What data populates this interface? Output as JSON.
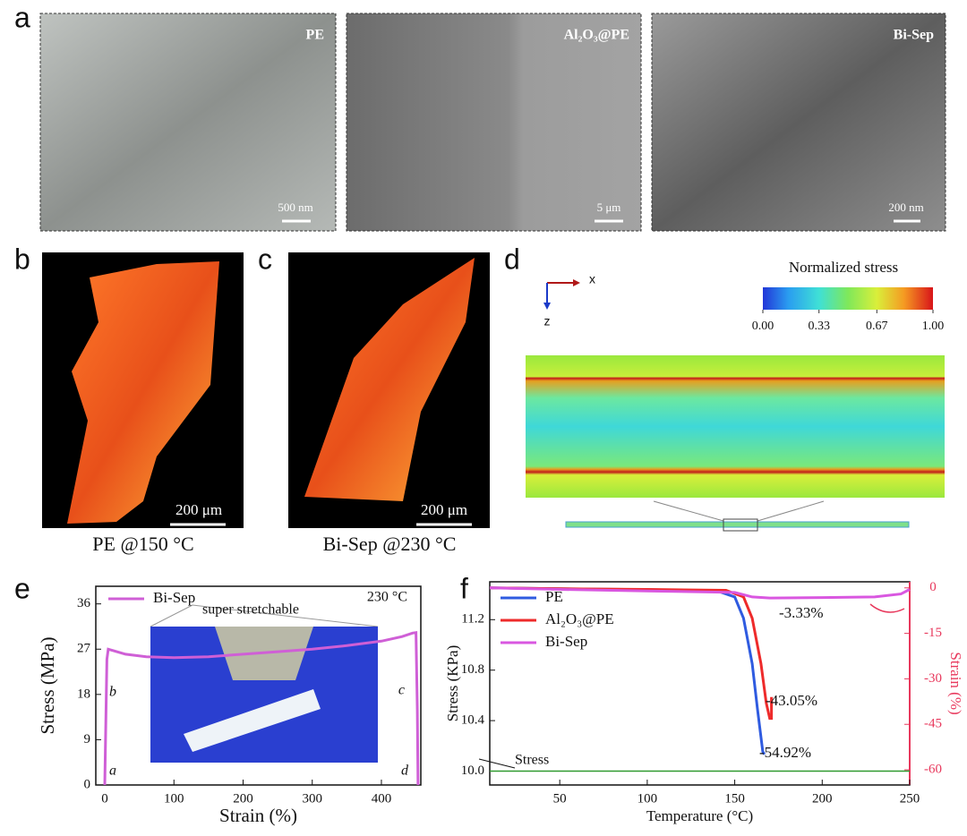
{
  "panels": {
    "a": {
      "label": "a",
      "images": [
        {
          "name": "PE",
          "scale": "500 nm"
        },
        {
          "name": "Al₂O₃@PE",
          "scale": "5 μm"
        },
        {
          "name": "Bi-Sep",
          "scale": "200 nm"
        }
      ]
    },
    "b": {
      "label": "b",
      "scale": "200 μm",
      "caption": "PE @150 °C"
    },
    "c": {
      "label": "c",
      "scale": "200 μm",
      "caption": "Bi-Sep @230 °C"
    },
    "d": {
      "label": "d",
      "axis_x": "x",
      "axis_z": "z",
      "colorbar_title": "Normalized stress",
      "colorbar_ticks": [
        {
          "value": 0,
          "label": "0.00"
        },
        {
          "value": 0.33,
          "label": "0.33"
        },
        {
          "value": 0.67,
          "label": "0.67"
        },
        {
          "value": 1,
          "label": "1.00"
        }
      ],
      "colorbar_range": [
        0,
        1
      ]
    },
    "e": {
      "label": "e"
    },
    "f": {
      "label": "f"
    }
  },
  "chart_data": [
    {
      "type": "line",
      "xlabel": "Strain (%)",
      "ylabel": "Stress (MPa)",
      "xlim": [
        -13,
        457
      ],
      "ylim": [
        0,
        39.5
      ],
      "xticks": [
        0,
        100,
        200,
        300,
        400
      ],
      "yticks": [
        0,
        9,
        18,
        27,
        36
      ],
      "legend": "upper left",
      "series": [
        {
          "name": "Bi-Sep",
          "color": "#cf5fd6",
          "x": [
            0,
            3,
            5,
            10,
            30,
            60,
            100,
            150,
            200,
            250,
            300,
            350,
            400,
            430,
            445,
            450,
            452,
            453
          ],
          "values": [
            0,
            25,
            27,
            26.8,
            26,
            25.5,
            25.3,
            25.5,
            26,
            26.5,
            27,
            27.7,
            28.6,
            29.5,
            30.2,
            30.3,
            15,
            0
          ]
        }
      ],
      "annotations": [
        "230 °C",
        "super stretchable",
        "a",
        "b",
        "c",
        "d"
      ]
    },
    {
      "type": "line",
      "xlabel": "Temperature (°C)",
      "ylabel": "Stress (KPa)",
      "y2label": "Strain (%)",
      "xlim": [
        10,
        250
      ],
      "ylim": [
        9.89,
        11.5
      ],
      "y2lim": [
        -65,
        2
      ],
      "xticks": [
        50,
        100,
        150,
        200,
        250
      ],
      "yticks": [
        {
          "value": 10,
          "label": "10.0"
        },
        {
          "value": 10.4,
          "label": "10.4"
        },
        {
          "value": 10.8,
          "label": "10.8"
        },
        {
          "value": 11.2,
          "label": "11.2"
        }
      ],
      "y2ticks": [
        0,
        -15,
        -30,
        -45,
        -60
      ],
      "y2_color": "#e8385c",
      "legend": "upper left",
      "series": [
        {
          "name": "PE",
          "color": "#2f5be0",
          "axis": "y2",
          "x": [
            10,
            50,
            100,
            140,
            150,
            155,
            160,
            163,
            166,
            167
          ],
          "values": [
            0,
            -0.3,
            -0.6,
            -1,
            -3,
            -10,
            -25,
            -40,
            -54,
            -54.92
          ]
        },
        {
          "name": "Al₂O₃@PE",
          "color": "#ee2b2b",
          "axis": "y2",
          "x": [
            10,
            50,
            100,
            145,
            155,
            160,
            165,
            168,
            170,
            171,
            171
          ],
          "values": [
            0,
            -0.3,
            -0.5,
            -0.8,
            -3,
            -10,
            -25,
            -38,
            -43.05,
            -43.05,
            -36
          ]
        },
        {
          "name": "Bi-Sep",
          "color": "#d957e0",
          "axis": "y2",
          "x": [
            10,
            50,
            100,
            150,
            160,
            170,
            200,
            230,
            245,
            250
          ],
          "values": [
            0,
            -0.5,
            -1,
            -1.5,
            -3,
            -3.33,
            -3.2,
            -3,
            -2,
            -0.5
          ]
        },
        {
          "name": "Stress",
          "color": "#2f9a2f",
          "axis": "y",
          "x": [
            10,
            250
          ],
          "values": [
            10,
            10
          ]
        }
      ],
      "annotations": [
        "-3.33%",
        "-43.05%",
        "-54.92%"
      ]
    }
  ]
}
